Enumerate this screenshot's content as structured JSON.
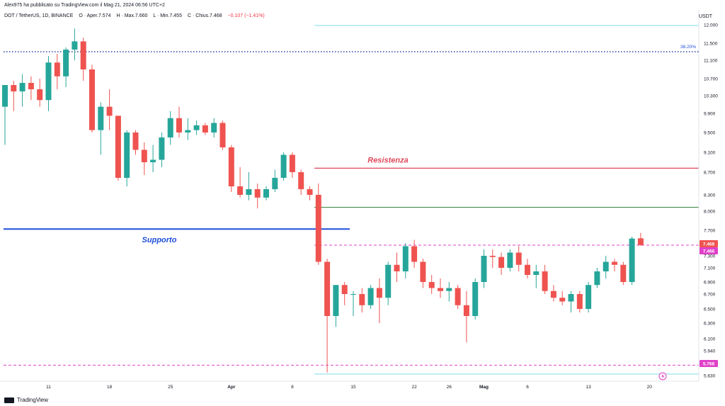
{
  "header": {
    "publisher": "Alex975 ha pubblicato su TradingView.com il Mag 21, 2024 06:56 UTC+2"
  },
  "symbol_line": {
    "symbol": "DOT / TetherUS, 1D, BINANCE",
    "open": "O · Aper.7.574",
    "high": "H · Max.7.660",
    "low": "L · Min.7.455",
    "close": "C · Chius.7.468",
    "change": "−0.107 (−1.41%)"
  },
  "currency": "USDT",
  "footer": {
    "brand": "TradingView"
  },
  "colors": {
    "up": "#26a69a",
    "down": "#ef5350",
    "support": "#1e4fd8",
    "resistance": "#e0475a",
    "green_line": "#2e7d32",
    "cyan_line": "#80deea",
    "dotted_blue": "#2a3fa0",
    "dashed_magenta": "#e040c8"
  },
  "chart_data": {
    "type": "candlestick",
    "x_tick_labels": [
      "11",
      "18",
      "25",
      "Apr",
      "8",
      "15",
      "22",
      "26",
      "Mag",
      "6",
      "13",
      "20"
    ],
    "y_tick_labels": [
      "12.000",
      "11.500",
      "11.100",
      "10.700",
      "10.300",
      "9.900",
      "9.500",
      "9.100",
      "8.700",
      "8.300",
      "8.000",
      "7.700",
      "7.300",
      "7.100",
      "6.900",
      "6.700",
      "6.500",
      "6.300",
      "6.100",
      "5.940",
      "5.790",
      "5.630"
    ],
    "ylim": [
      5.55,
      12.25
    ],
    "price_badges": [
      {
        "label": "7.468",
        "value": 7.468,
        "color": "#ef5350"
      },
      {
        "label": "7.466",
        "value": 7.466,
        "color": "#e040c8"
      },
      {
        "label": "5.768",
        "value": 5.768,
        "color": "#e040c8"
      }
    ],
    "levels": [
      {
        "name": "Resistenza",
        "value": 8.78,
        "style": "solid"
      },
      {
        "name": "Supporto",
        "value": 7.72,
        "style": "solid"
      },
      {
        "name": "",
        "value": 8.07,
        "style": "solid"
      },
      {
        "name": "",
        "value": 11.98,
        "style": "solid"
      },
      {
        "name": "",
        "value": 5.65,
        "style": "solid"
      },
      {
        "name": "38.20%",
        "value": 11.3,
        "style": "dotted"
      },
      {
        "name": "",
        "value": 7.466,
        "style": "dashed"
      },
      {
        "name": "",
        "value": 5.768,
        "style": "dashed"
      }
    ],
    "candles": [
      [
        10.05,
        10.55,
        9.25,
        10.55
      ],
      [
        10.55,
        10.65,
        9.95,
        10.4
      ],
      [
        10.4,
        10.8,
        10.05,
        10.6
      ],
      [
        10.6,
        10.75,
        10.2,
        10.45
      ],
      [
        10.45,
        10.7,
        10.05,
        10.2
      ],
      [
        10.2,
        11.2,
        9.95,
        11.05
      ],
      [
        11.05,
        11.25,
        10.45,
        10.75
      ],
      [
        10.75,
        11.4,
        10.5,
        11.35
      ],
      [
        11.35,
        11.9,
        11.1,
        11.55
      ],
      [
        11.55,
        11.65,
        10.65,
        10.9
      ],
      [
        10.9,
        11.0,
        9.5,
        9.55
      ],
      [
        9.55,
        10.15,
        9.05,
        10.05
      ],
      [
        10.05,
        10.45,
        9.55,
        9.85
      ],
      [
        9.85,
        9.85,
        8.55,
        8.6
      ],
      [
        8.6,
        9.55,
        8.45,
        9.5
      ],
      [
        9.5,
        9.55,
        9.05,
        9.15
      ],
      [
        9.15,
        9.3,
        8.65,
        8.9
      ],
      [
        8.9,
        9.25,
        8.7,
        8.95
      ],
      [
        8.95,
        9.5,
        8.8,
        9.4
      ],
      [
        9.4,
        9.95,
        9.25,
        9.8
      ],
      [
        9.8,
        10.05,
        9.4,
        9.5
      ],
      [
        9.5,
        9.8,
        9.35,
        9.55
      ],
      [
        9.55,
        9.75,
        9.45,
        9.65
      ],
      [
        9.65,
        9.7,
        9.45,
        9.5
      ],
      [
        9.5,
        9.8,
        9.4,
        9.7
      ],
      [
        9.7,
        9.75,
        9.15,
        9.2
      ],
      [
        9.2,
        9.25,
        8.35,
        8.45
      ],
      [
        8.45,
        8.8,
        8.25,
        8.3
      ],
      [
        8.3,
        8.7,
        8.2,
        8.4
      ],
      [
        8.4,
        8.5,
        8.05,
        8.25
      ],
      [
        8.25,
        8.45,
        8.2,
        8.4
      ],
      [
        8.4,
        8.75,
        8.35,
        8.6
      ],
      [
        8.6,
        9.1,
        8.55,
        9.05
      ],
      [
        9.05,
        9.1,
        8.6,
        8.7
      ],
      [
        8.7,
        8.75,
        8.3,
        8.4
      ],
      [
        8.4,
        8.45,
        8.2,
        8.3
      ],
      [
        8.3,
        8.5,
        7.15,
        7.2
      ],
      [
        7.2,
        7.25,
        5.67,
        6.4
      ],
      [
        6.4,
        6.85,
        6.25,
        6.85
      ],
      [
        6.85,
        6.9,
        6.55,
        6.7
      ],
      [
        6.7,
        6.75,
        6.4,
        6.7
      ],
      [
        6.7,
        6.8,
        6.45,
        6.55
      ],
      [
        6.55,
        6.85,
        6.5,
        6.8
      ],
      [
        6.8,
        6.95,
        6.3,
        6.65
      ],
      [
        6.65,
        7.2,
        6.55,
        7.15
      ],
      [
        7.15,
        7.35,
        6.9,
        7.05
      ],
      [
        7.05,
        7.5,
        6.95,
        7.45
      ],
      [
        7.45,
        7.55,
        7.1,
        7.2
      ],
      [
        7.2,
        7.25,
        6.8,
        6.9
      ],
      [
        6.9,
        7.0,
        6.7,
        6.8
      ],
      [
        6.8,
        6.95,
        6.65,
        6.75
      ],
      [
        6.75,
        6.9,
        6.6,
        6.8
      ],
      [
        6.8,
        6.85,
        6.5,
        6.55
      ],
      [
        6.55,
        6.75,
        6.05,
        6.4
      ],
      [
        6.4,
        6.95,
        6.35,
        6.9
      ],
      [
        6.9,
        7.4,
        6.8,
        7.3
      ],
      [
        7.3,
        7.4,
        7.1,
        7.28
      ],
      [
        7.28,
        7.35,
        7.0,
        7.1
      ],
      [
        7.1,
        7.4,
        7.05,
        7.35
      ],
      [
        7.35,
        7.45,
        7.05,
        7.15
      ],
      [
        7.15,
        7.25,
        6.95,
        7.0
      ],
      [
        7.0,
        7.15,
        6.8,
        7.05
      ],
      [
        7.05,
        7.15,
        6.7,
        6.75
      ],
      [
        6.75,
        6.85,
        6.6,
        6.65
      ],
      [
        6.65,
        6.75,
        6.55,
        6.6
      ],
      [
        6.6,
        6.75,
        6.45,
        6.7
      ],
      [
        6.7,
        6.75,
        6.45,
        6.5
      ],
      [
        6.5,
        6.9,
        6.45,
        6.85
      ],
      [
        6.85,
        7.1,
        6.8,
        7.05
      ],
      [
        7.05,
        7.3,
        6.95,
        7.2
      ],
      [
        7.2,
        7.25,
        7.05,
        7.15
      ],
      [
        7.15,
        7.2,
        6.85,
        6.9
      ],
      [
        6.9,
        7.6,
        6.85,
        7.57
      ],
      [
        7.574,
        7.66,
        7.455,
        7.468
      ]
    ]
  }
}
